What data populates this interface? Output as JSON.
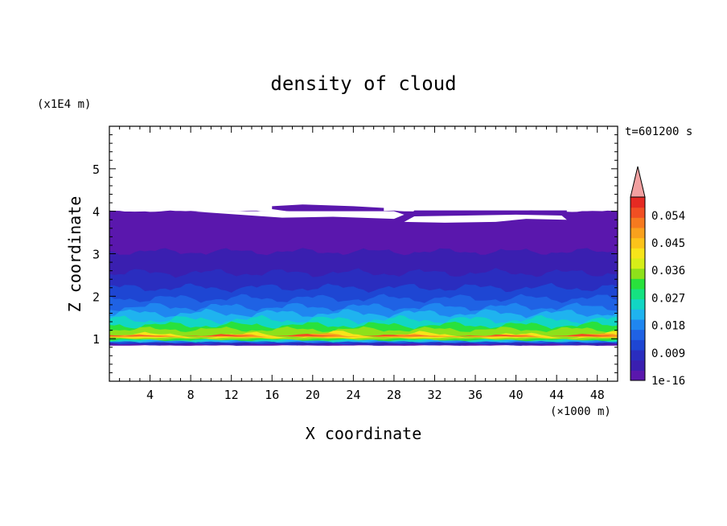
{
  "chart_data": {
    "type": "heatmap",
    "title": "density of cloud",
    "xlabel": "X coordinate",
    "ylabel": "Z coordinate",
    "x_unit": "(×1000 m)",
    "y_unit": "(x1E4 m)",
    "time_label": "t=601200 s",
    "xlim": [
      0,
      50
    ],
    "ylim": [
      0,
      6
    ],
    "xticks": [
      "4",
      "8",
      "12",
      "16",
      "20",
      "24",
      "28",
      "32",
      "36",
      "40",
      "44",
      "48"
    ],
    "yticks": [
      "1",
      "2",
      "3",
      "4",
      "5"
    ],
    "colorbar": {
      "labels": [
        "1e-16",
        "0.009",
        "0.018",
        "0.027",
        "0.036",
        "0.045",
        "0.054"
      ],
      "colors": [
        "#5a17ad",
        "#3a1fb0",
        "#2a2dbf",
        "#1e46d3",
        "#1f62e4",
        "#1f86f0",
        "#1fb3ef",
        "#12d6c4",
        "#15e281",
        "#29e13c",
        "#8ee11a",
        "#d6ee18",
        "#f7e41a",
        "#fcc31a",
        "#f9a11d",
        "#f67a1f",
        "#f14f23",
        "#e52a23"
      ],
      "extend_color": "#f2a0a0",
      "max": 0.06
    },
    "layers": [
      {
        "level": "0.0003",
        "color": "#5a17ad"
      },
      {
        "level": "0.002",
        "color": "#3a1fb0"
      },
      {
        "level": "0.006",
        "color": "#2a2dbf"
      },
      {
        "level": "0.010",
        "color": "#1e46d3"
      },
      {
        "level": "0.014",
        "color": "#1f62e4"
      },
      {
        "level": "0.017",
        "color": "#1f86f0"
      },
      {
        "level": "0.021",
        "color": "#1fb3ef"
      },
      {
        "level": "0.025",
        "color": "#12d6c4"
      },
      {
        "level": "0.028",
        "color": "#29e13c"
      },
      {
        "level": "0.033",
        "color": "#8ee11a"
      },
      {
        "level": "0.038",
        "color": "#f7e41a"
      },
      {
        "level": "0.044",
        "color": "#f9a11d"
      },
      {
        "level": "0.050",
        "color": "#f14f23"
      }
    ]
  }
}
